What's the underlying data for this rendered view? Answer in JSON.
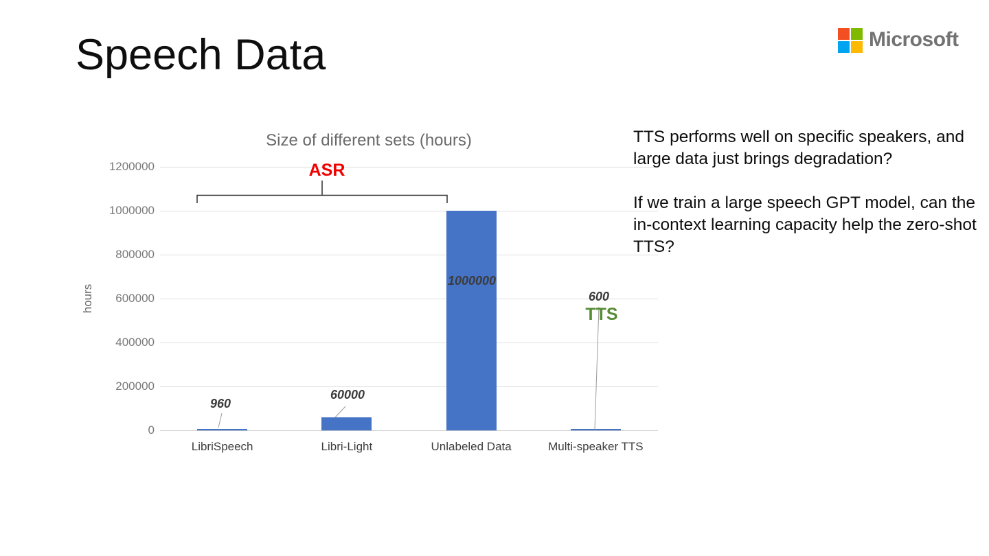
{
  "slide": {
    "title": "Speech Data"
  },
  "logo": {
    "text": "Microsoft",
    "square_colors": {
      "top_left": "#f25022",
      "top_right": "#7fba00",
      "bottom_left": "#00a4ef",
      "bottom_right": "#ffb900"
    },
    "text_color": "#737373"
  },
  "chart_data": {
    "type": "bar",
    "title": "Size of different sets (hours)",
    "ylabel": "hours",
    "xlabel": "",
    "categories": [
      "LibriSpeech",
      "Libri-Light",
      "Unlabeled Data",
      "Multi-speaker TTS"
    ],
    "values": [
      960,
      60000,
      1000000,
      600
    ],
    "data_labels": [
      "960",
      "60000",
      "1000000",
      "600"
    ],
    "yticks": [
      0,
      200000,
      400000,
      600000,
      800000,
      1000000,
      1200000
    ],
    "ylim": [
      0,
      1200000
    ],
    "grid": true,
    "legend": false,
    "bar_color": "#4573c6",
    "annotations": [
      {
        "text": "ASR",
        "color": "#f20000",
        "covers": [
          "LibriSpeech",
          "Libri-Light",
          "Unlabeled Data"
        ]
      },
      {
        "text": "TTS",
        "color": "#578c35",
        "covers": [
          "Multi-speaker TTS"
        ]
      }
    ]
  },
  "side_text": {
    "paragraph1": "TTS performs well on specific speakers, and large data just brings degradation?",
    "paragraph2": "If we train a large speech GPT model, can the in-context learning capacity help the zero-shot TTS?"
  }
}
